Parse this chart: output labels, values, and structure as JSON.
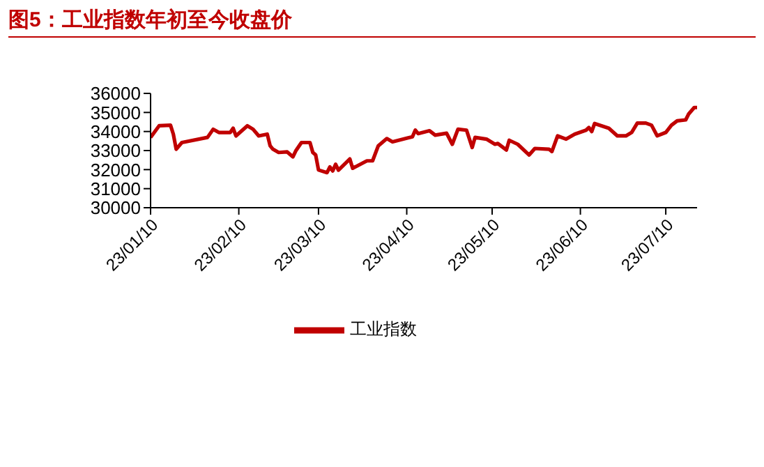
{
  "chart_data": {
    "type": "line",
    "title": "图5：工业指数年初至今收盘价",
    "x": [
      "--01-10",
      "--01-13",
      "--01-17",
      "--01-18",
      "--01-19",
      "--01-21",
      "--01-30",
      "--02-01",
      "--02-03",
      "--02-07",
      "--02-08",
      "--02-09",
      "--02-13",
      "--02-15",
      "--02-17",
      "--02-20",
      "--02-21",
      "--02-22",
      "--02-24",
      "--02-27",
      "--03-01",
      "--03-02",
      "--03-04",
      "--03-07",
      "--03-08",
      "--03-09",
      "--03-10",
      "--03-13",
      "--03-14",
      "--03-15",
      "--03-16",
      "--03-17",
      "--03-21",
      "--03-22",
      "--03-27",
      "--03-29",
      "--03-31",
      "--04-03",
      "--04-05",
      "--04-10",
      "--04-12",
      "--04-13",
      "--04-14",
      "--04-18",
      "--04-20",
      "--04-24",
      "--04-26",
      "--04-28",
      "--05-01",
      "--05-03",
      "--05-04",
      "--05-08",
      "--05-11",
      "--05-12",
      "--05-15",
      "--05-16",
      "--05-19",
      "--05-23",
      "--05-25",
      "--05-30",
      "--05-31",
      "--06-02",
      "--06-05",
      "--06-08",
      "--06-12",
      "--06-13",
      "--06-14",
      "--06-15",
      "--06-20",
      "--06-23",
      "--06-26",
      "--06-28",
      "--06-30",
      "--07-03",
      "--07-05",
      "--07-07",
      "--07-10",
      "--07-12",
      "--07-14",
      "--07-17",
      "--07-18",
      "--07-20",
      "--07-21"
    ],
    "series": [
      {
        "name": "工业指数",
        "color": "#c00000",
        "values": [
          33690,
          34300,
          34330,
          33860,
          33070,
          33420,
          33690,
          34120,
          33950,
          33950,
          34170,
          33770,
          34300,
          34120,
          33770,
          33860,
          33250,
          33070,
          32900,
          32930,
          32670,
          32980,
          33420,
          33420,
          32900,
          32770,
          31980,
          31840,
          32140,
          31930,
          32280,
          31970,
          32560,
          32070,
          32460,
          32460,
          33250,
          33630,
          33460,
          33650,
          33720,
          34070,
          33890,
          34040,
          33810,
          33910,
          33330,
          34120,
          34070,
          33160,
          33690,
          33600,
          33330,
          33370,
          33030,
          33540,
          33330,
          32770,
          33110,
          33070,
          32950,
          33770,
          33600,
          33860,
          34070,
          34210,
          34000,
          34420,
          34170,
          33770,
          33770,
          33950,
          34440,
          34440,
          34330,
          33770,
          33950,
          34330,
          34560,
          34610,
          34910,
          35260,
          35260
        ]
      }
    ],
    "xlim": [
      "--01-10",
      "--07-21"
    ],
    "xticks": [
      {
        "value": "--01-10",
        "label": "23/01/10"
      },
      {
        "value": "--02-10",
        "label": "23/02/10"
      },
      {
        "value": "--03-10",
        "label": "23/03/10"
      },
      {
        "value": "--04-10",
        "label": "23/04/10"
      },
      {
        "value": "--05-10",
        "label": "23/05/10"
      },
      {
        "value": "--06-10",
        "label": "23/06/10"
      },
      {
        "value": "--07-10",
        "label": "23/07/10"
      }
    ],
    "ylim": [
      30000,
      36000
    ],
    "yticks": [
      30000,
      31000,
      32000,
      33000,
      34000,
      35000,
      36000
    ],
    "grid": false,
    "legend": "bottom",
    "marker": "none",
    "line_style": "solid"
  }
}
